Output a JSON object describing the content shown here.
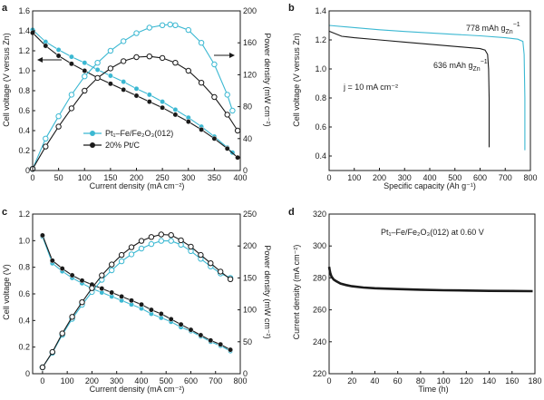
{
  "figure": {
    "colors": {
      "teal": "#3bb8d2",
      "black": "#1a1a1a",
      "axis": "#1a1a1a"
    }
  },
  "chart_data": [
    {
      "id": "a",
      "panel_label": "a",
      "type": "line",
      "xlabel": "Current density (mA cm⁻²)",
      "ylabel": "Cell voltage (V versus Zn)",
      "y2label": "Power density (mW cm⁻²)",
      "xlim": [
        0,
        400
      ],
      "ylim": [
        0,
        1.6
      ],
      "y2lim": [
        0,
        200
      ],
      "xticks": [
        0,
        50,
        100,
        150,
        200,
        250,
        300,
        350,
        400
      ],
      "yticks": [
        0,
        0.2,
        0.4,
        0.6,
        0.8,
        1.0,
        1.2,
        1.4,
        1.6
      ],
      "ytick_labels": [
        "0",
        "0.2",
        "0.4",
        "0.6",
        "0.8",
        "1.0",
        "1.2",
        "1.4",
        "1.6"
      ],
      "y2ticks": [
        0,
        40,
        80,
        120,
        160,
        200
      ],
      "legend": {
        "position": "bottom-left",
        "items": [
          {
            "label": "Pt₁–Fe/Fe₂O₃(012)",
            "color": "#3bb8d2"
          },
          {
            "label": "20% Pt/C",
            "color": "#1a1a1a"
          }
        ]
      },
      "series": [
        {
          "name": "Pt₁–Fe/Fe₂O₃(012) voltage",
          "axis": "left",
          "color": "#3bb8d2",
          "marker": "filled",
          "x": [
            0,
            25,
            50,
            75,
            100,
            125,
            150,
            175,
            200,
            225,
            250,
            275,
            300,
            325,
            350,
            375,
            385
          ],
          "y": [
            1.41,
            1.29,
            1.21,
            1.14,
            1.08,
            1.01,
            0.95,
            0.89,
            0.82,
            0.76,
            0.69,
            0.61,
            0.53,
            0.44,
            0.34,
            0.23,
            0.18
          ]
        },
        {
          "name": "20% Pt/C voltage",
          "axis": "left",
          "color": "#1a1a1a",
          "marker": "filled",
          "x": [
            0,
            25,
            50,
            75,
            100,
            125,
            150,
            175,
            200,
            225,
            250,
            275,
            300,
            325,
            350,
            375,
            395
          ],
          "y": [
            1.38,
            1.25,
            1.15,
            1.07,
            1.0,
            0.93,
            0.87,
            0.81,
            0.75,
            0.69,
            0.63,
            0.56,
            0.49,
            0.41,
            0.32,
            0.22,
            0.13
          ]
        },
        {
          "name": "Pt₁–Fe/Fe₂O₃(012) power",
          "axis": "right",
          "color": "#3bb8d2",
          "marker": "open",
          "x": [
            0,
            25,
            50,
            75,
            100,
            125,
            150,
            175,
            200,
            225,
            250,
            265,
            275,
            300,
            325,
            350,
            375,
            385
          ],
          "y": [
            2,
            40,
            68,
            95,
            118,
            135,
            150,
            162,
            172,
            179,
            182,
            183,
            182,
            176,
            160,
            133,
            95,
            75
          ]
        },
        {
          "name": "20% Pt/C power",
          "axis": "right",
          "color": "#1a1a1a",
          "marker": "open",
          "x": [
            0,
            25,
            50,
            75,
            100,
            125,
            150,
            175,
            200,
            225,
            250,
            275,
            300,
            325,
            350,
            375,
            395
          ],
          "y": [
            2,
            30,
            55,
            78,
            100,
            116,
            128,
            137,
            142,
            143,
            141,
            135,
            125,
            110,
            92,
            70,
            50
          ]
        }
      ],
      "arrows": [
        {
          "direction": "left"
        },
        {
          "direction": "right"
        }
      ]
    },
    {
      "id": "b",
      "panel_label": "b",
      "type": "line",
      "xlabel": "Specific capacity (Ah g⁻¹)",
      "ylabel": "Cell voltage (V versus Zn)",
      "xlim": [
        0,
        800
      ],
      "ylim": [
        0.3,
        1.4
      ],
      "xticks": [
        0,
        100,
        200,
        300,
        400,
        500,
        600,
        700,
        800
      ],
      "yticks": [
        0.4,
        0.6,
        0.8,
        1.0,
        1.2,
        1.4
      ],
      "ytick_labels": [
        "0.4",
        "0.6",
        "0.8",
        "1.0",
        "1.2",
        "1.4"
      ],
      "annotations": {
        "current": "j = 10 mA cm⁻²",
        "teal_capacity": "778 mAh g",
        "teal_sub": "Zn",
        "teal_sup": "−1",
        "black_capacity": "636 mAh g",
        "black_sub": "Zn",
        "black_sup": "−1"
      },
      "series": [
        {
          "name": "Pt₁–Fe/Fe₂O₃(012)",
          "color": "#3bb8d2",
          "x": [
            0,
            100,
            200,
            300,
            400,
            500,
            600,
            700,
            750,
            770,
            775,
            778,
            778
          ],
          "y": [
            1.3,
            1.285,
            1.27,
            1.258,
            1.248,
            1.238,
            1.228,
            1.215,
            1.205,
            1.19,
            1.1,
            0.8,
            0.44
          ]
        },
        {
          "name": "20% Pt/C",
          "color": "#1a1a1a",
          "x": [
            0,
            50,
            100,
            200,
            300,
            400,
            500,
            600,
            620,
            630,
            634,
            636,
            636
          ],
          "y": [
            1.26,
            1.225,
            1.215,
            1.2,
            1.185,
            1.17,
            1.155,
            1.14,
            1.13,
            1.1,
            1.0,
            0.8,
            0.46
          ]
        }
      ]
    },
    {
      "id": "c",
      "panel_label": "c",
      "type": "line",
      "xlabel": "Current density (mA cm⁻²)",
      "ylabel": "Cell voltage (V)",
      "y2label": "Power density (mW cm⁻²)",
      "xlim": [
        -40,
        800
      ],
      "ylim": [
        0,
        1.2
      ],
      "y2lim": [
        0,
        250
      ],
      "xticks": [
        0,
        100,
        200,
        300,
        400,
        500,
        600,
        700,
        800
      ],
      "yticks": [
        0,
        0.2,
        0.4,
        0.6,
        0.8,
        1.0,
        1.2
      ],
      "ytick_labels": [
        "0",
        "0.2",
        "0.4",
        "0.6",
        "0.8",
        "1.0",
        "1.2"
      ],
      "y2ticks": [
        0,
        50,
        100,
        150,
        200,
        250
      ],
      "series": [
        {
          "name": "teal voltage",
          "axis": "left",
          "color": "#3bb8d2",
          "marker": "filled",
          "x": [
            0,
            40,
            80,
            120,
            160,
            200,
            240,
            280,
            320,
            360,
            400,
            440,
            480,
            520,
            560,
            600,
            640,
            680,
            720,
            760
          ],
          "y": [
            1.03,
            0.83,
            0.77,
            0.72,
            0.68,
            0.64,
            0.61,
            0.58,
            0.55,
            0.52,
            0.49,
            0.45,
            0.42,
            0.39,
            0.35,
            0.32,
            0.28,
            0.24,
            0.21,
            0.17
          ]
        },
        {
          "name": "black voltage",
          "axis": "left",
          "color": "#1a1a1a",
          "marker": "filled",
          "x": [
            0,
            40,
            80,
            120,
            160,
            200,
            240,
            280,
            320,
            360,
            400,
            440,
            480,
            520,
            560,
            600,
            640,
            680,
            720,
            760
          ],
          "y": [
            1.04,
            0.85,
            0.79,
            0.74,
            0.7,
            0.67,
            0.64,
            0.61,
            0.58,
            0.55,
            0.52,
            0.48,
            0.45,
            0.41,
            0.37,
            0.33,
            0.29,
            0.25,
            0.22,
            0.18
          ]
        },
        {
          "name": "teal power",
          "axis": "right",
          "color": "#3bb8d2",
          "marker": "open",
          "x": [
            0,
            40,
            80,
            120,
            160,
            200,
            240,
            280,
            320,
            360,
            400,
            440,
            480,
            520,
            560,
            600,
            640,
            680,
            720,
            760
          ],
          "y": [
            10,
            33,
            61,
            86,
            108,
            128,
            147,
            162,
            176,
            187,
            196,
            203,
            208,
            208,
            202,
            192,
            180,
            168,
            157,
            150
          ]
        },
        {
          "name": "black power",
          "axis": "right",
          "color": "#1a1a1a",
          "marker": "open",
          "x": [
            0,
            40,
            80,
            120,
            160,
            200,
            240,
            280,
            320,
            360,
            400,
            440,
            480,
            520,
            560,
            600,
            640,
            680,
            720,
            760
          ],
          "y": [
            10,
            34,
            63,
            89,
            112,
            134,
            154,
            171,
            186,
            198,
            208,
            214,
            218,
            217,
            209,
            199,
            186,
            173,
            160,
            148
          ]
        }
      ]
    },
    {
      "id": "d",
      "panel_label": "d",
      "type": "line",
      "xlabel": "Time (h)",
      "ylabel": "Current density (mA cm⁻²)",
      "xlim": [
        0,
        180
      ],
      "ylim": [
        220,
        320
      ],
      "xticks": [
        0,
        20,
        40,
        60,
        80,
        100,
        120,
        140,
        160,
        180
      ],
      "yticks": [
        220,
        240,
        260,
        280,
        300,
        320
      ],
      "ytick_labels": [
        "220",
        "240",
        "260",
        "280",
        "300",
        "320"
      ],
      "annotation": "Pt₁–Fe/Fe₂O₃(012) at 0.60 V",
      "series": [
        {
          "name": "Pt₁–Fe/Fe₂O₃(012)",
          "color": "#1a1a1a",
          "x": [
            0,
            0.5,
            1,
            2,
            4,
            6,
            10,
            15,
            20,
            30,
            40,
            60,
            80,
            100,
            120,
            140,
            160,
            178
          ],
          "y": [
            287,
            285,
            283,
            281,
            279,
            278,
            276.5,
            275.5,
            274.8,
            274,
            273.5,
            273,
            272.6,
            272.3,
            272.1,
            271.9,
            271.8,
            271.7
          ]
        }
      ]
    }
  ]
}
